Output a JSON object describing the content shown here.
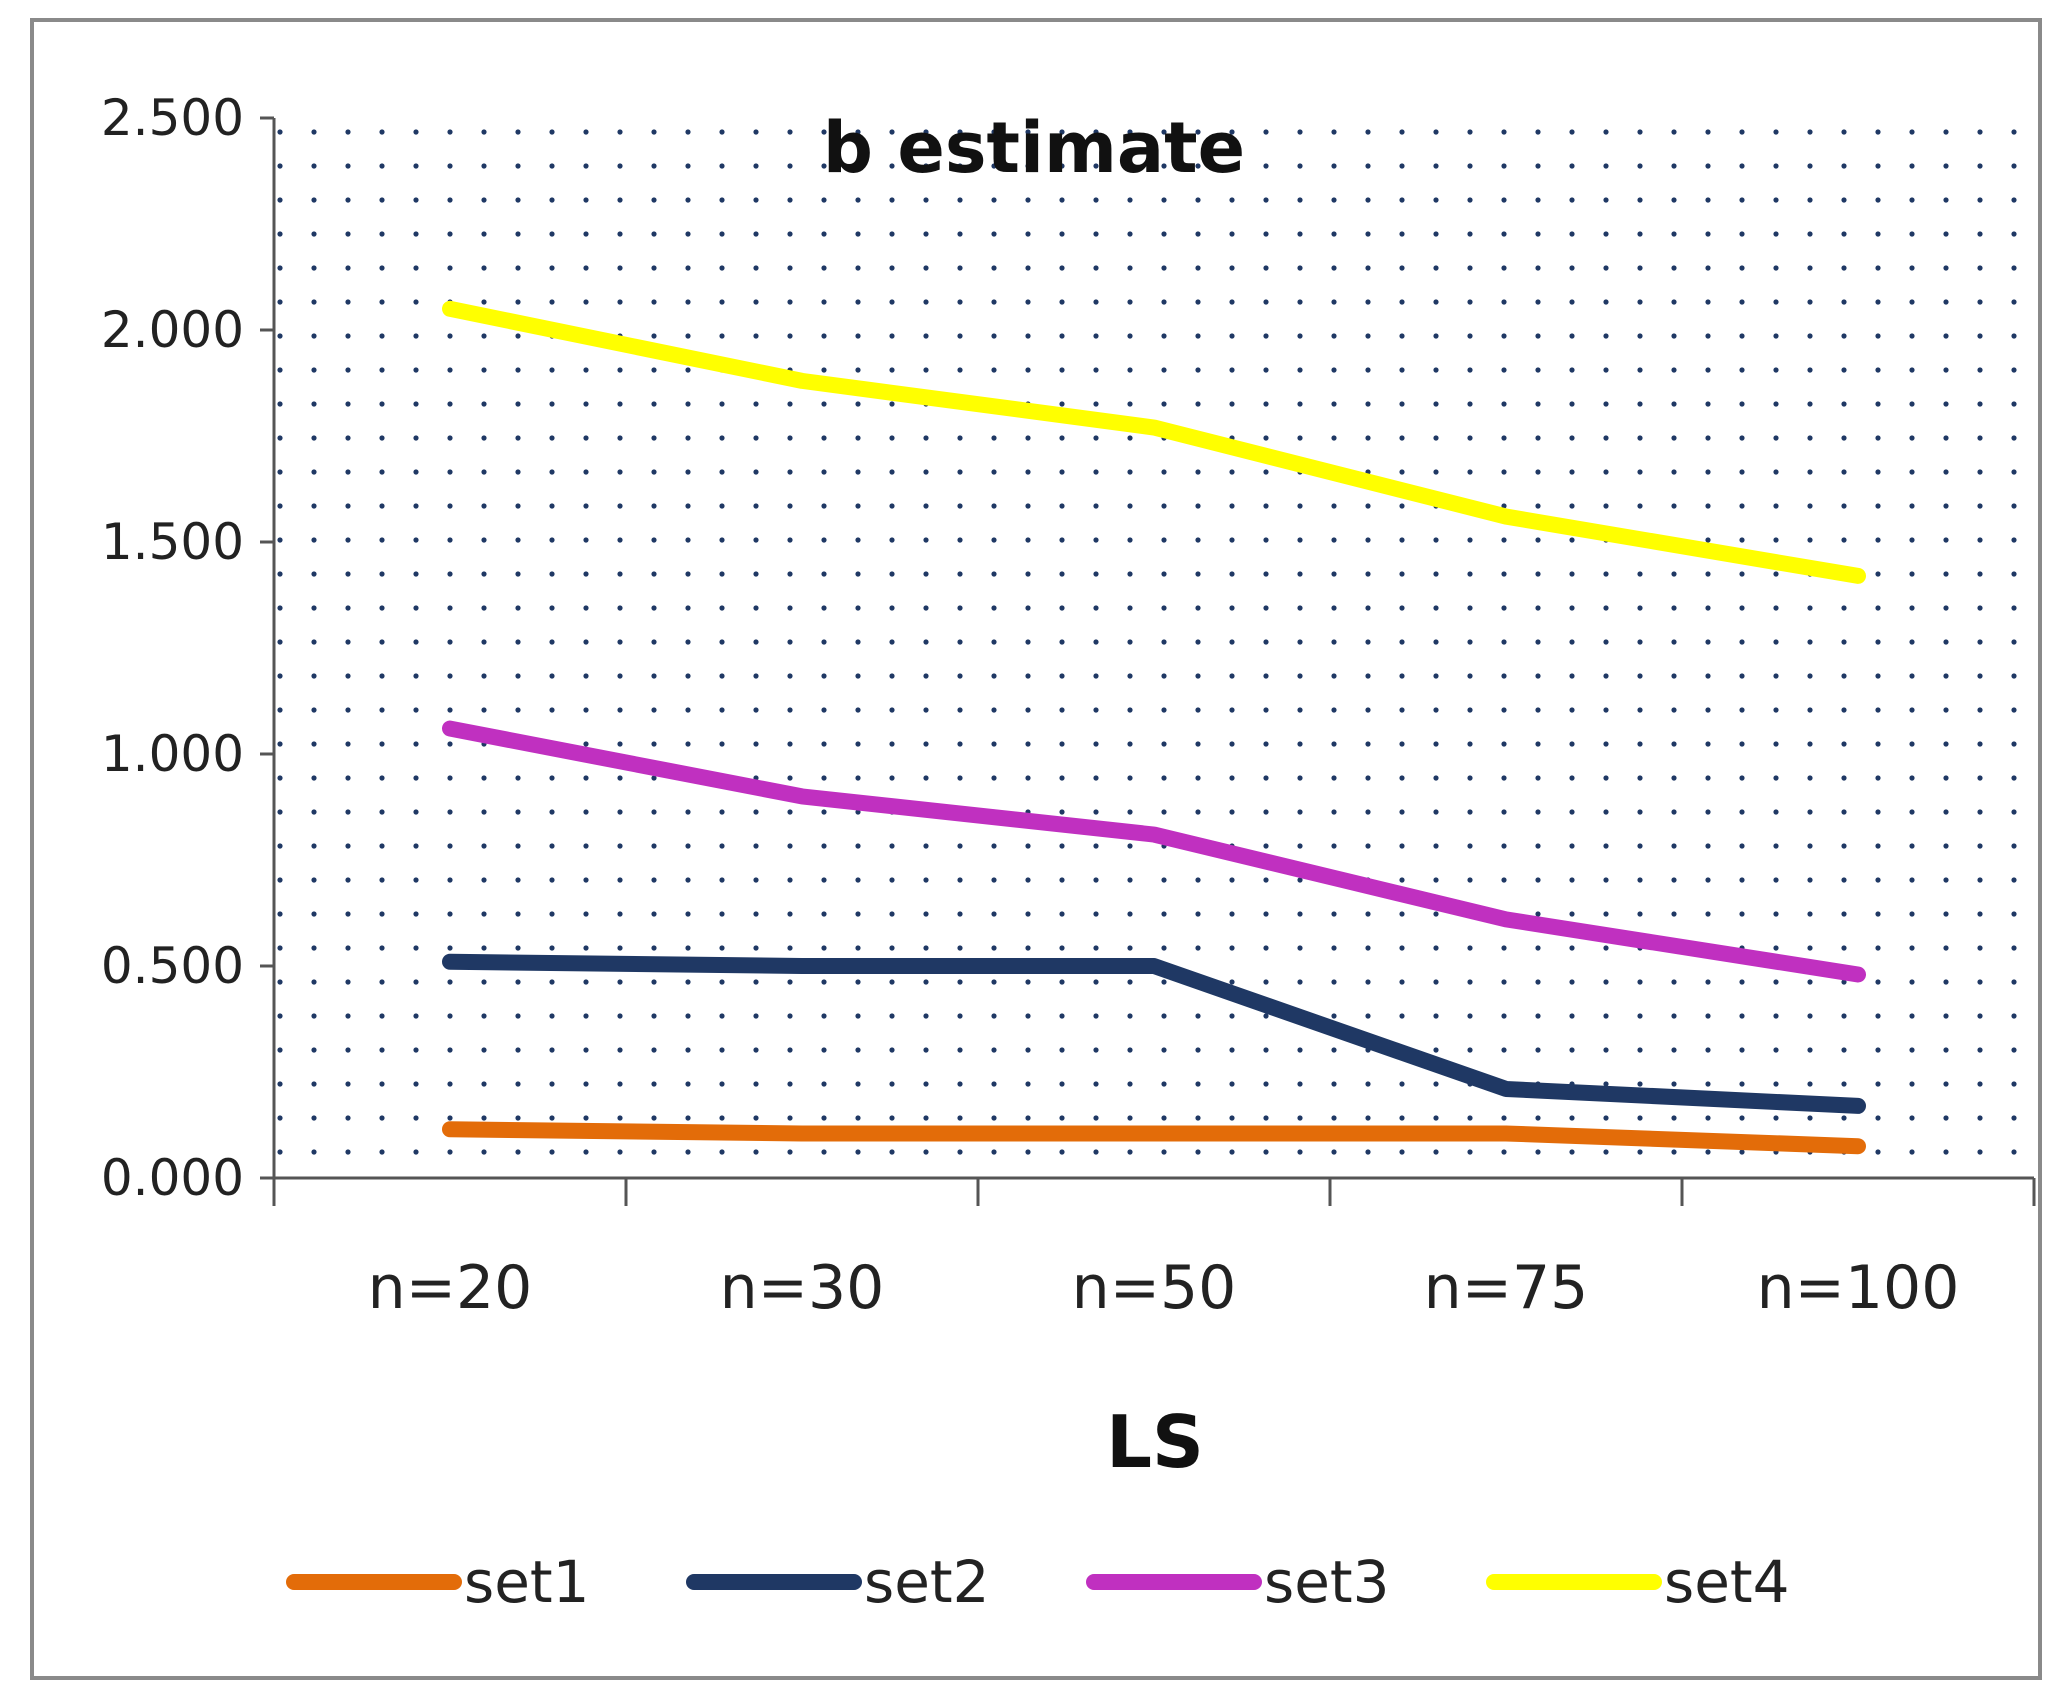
{
  "chart_data": {
    "type": "line",
    "title": "b estimate",
    "xlabel": "LS",
    "ylabel": "",
    "categories": [
      "n=20",
      "n=30",
      "n=50",
      "n=75",
      "n=100"
    ],
    "ylim": [
      0,
      2.5
    ],
    "yticks": [
      "0.000",
      "0.500",
      "1.000",
      "1.500",
      "2.000",
      "2.500"
    ],
    "grid": "dotted",
    "legend_position": "bottom",
    "series": [
      {
        "name": "set1",
        "color": "#E36C09",
        "values": [
          0.115,
          0.105,
          0.105,
          0.105,
          0.075
        ]
      },
      {
        "name": "set2",
        "color": "#1F3864",
        "values": [
          0.51,
          0.5,
          0.5,
          0.21,
          0.17
        ]
      },
      {
        "name": "set3",
        "color": "#C030C0",
        "values": [
          1.06,
          0.9,
          0.81,
          0.61,
          0.48
        ]
      },
      {
        "name": "set4",
        "color": "#FFFF00",
        "values": [
          2.05,
          1.88,
          1.77,
          1.56,
          1.42
        ]
      }
    ]
  }
}
